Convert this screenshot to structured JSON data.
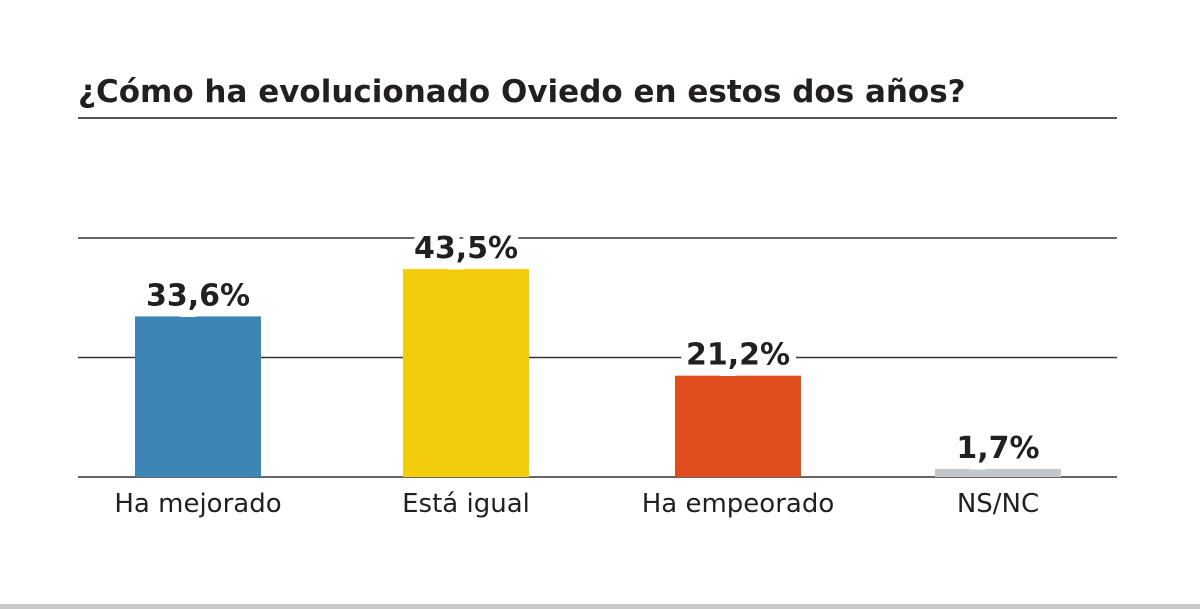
{
  "chart_data": {
    "type": "bar",
    "title": "¿Cómo ha evolucionado Oviedo en estos dos años?",
    "xlabel": "",
    "ylabel": "",
    "categories": [
      "Ha mejorado",
      "Está igual",
      "Ha empeorado",
      "NS/NC"
    ],
    "values": [
      33.6,
      43.5,
      21.2,
      1.7
    ],
    "value_labels": [
      "33,6%",
      "43,5%",
      "21,2%",
      "1,7%"
    ],
    "colors": [
      "#3d85b5",
      "#f3cd0b",
      "#e04d1e",
      "#c4c8ca"
    ],
    "ylim": [
      0,
      50
    ],
    "gridlines": [
      0,
      25,
      50
    ],
    "grid": true,
    "legend": "none"
  }
}
